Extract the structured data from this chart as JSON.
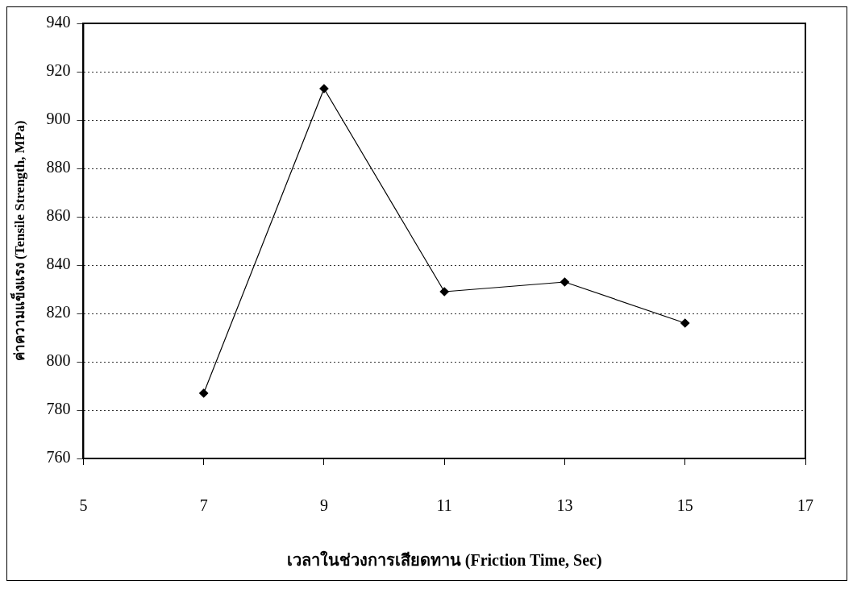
{
  "chart_data": {
    "type": "line",
    "xlabel": "เวลาในช่วงการเสียดทาน (Friction Time, Sec)",
    "ylabel": "ค่าความแข็งแรง (Tensile Strength, MPa)",
    "x": [
      7,
      9,
      11,
      13,
      15
    ],
    "series": [
      {
        "color": "#000000",
        "values": [
          787,
          913,
          829,
          833,
          816
        ]
      }
    ],
    "xlim": [
      5,
      17
    ],
    "xticks": [
      5,
      7,
      9,
      11,
      13,
      15,
      17
    ],
    "ylim": [
      760,
      940
    ],
    "yticks": [
      760,
      780,
      800,
      820,
      840,
      860,
      880,
      900,
      920,
      940
    ],
    "grid": "y",
    "marker": "diamond",
    "line_style": "solid",
    "legend": false
  }
}
